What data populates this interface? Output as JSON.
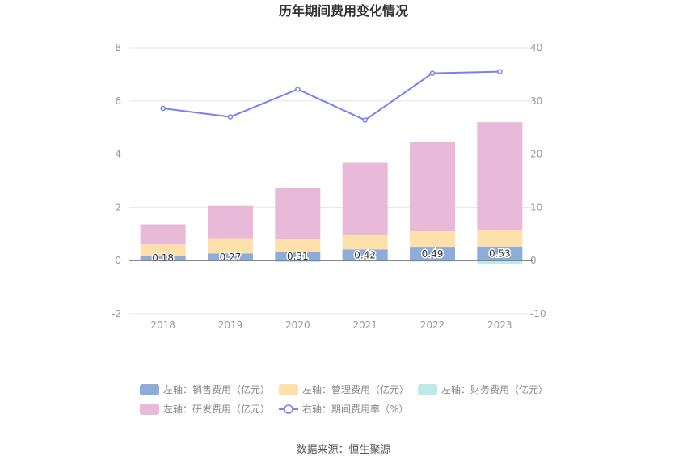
{
  "chart_data": {
    "type": "bar",
    "title": "历年期间费用变化情况",
    "categories": [
      "2018",
      "2019",
      "2020",
      "2021",
      "2022",
      "2023"
    ],
    "left_axis": {
      "ylim": [
        -2,
        8
      ],
      "ticks": [
        "-2",
        "0",
        "2",
        "4",
        "6",
        "8"
      ]
    },
    "right_axis": {
      "ylim": [
        -10,
        40
      ],
      "ticks": [
        "-10",
        "0",
        "10",
        "20",
        "30",
        "40"
      ]
    },
    "series": [
      {
        "name": "左轴：销售费用（亿元）",
        "axis": "left",
        "type": "bar",
        "color": "#8eacd9",
        "values": [
          0.18,
          0.27,
          0.31,
          0.42,
          0.49,
          0.53
        ],
        "labels": [
          "0.18",
          "0.27",
          "0.31",
          "0.42",
          "0.49",
          "0.53"
        ]
      },
      {
        "name": "左轴：管理费用（亿元）",
        "axis": "left",
        "type": "bar",
        "color": "#fde0aa",
        "values": [
          0.43,
          0.57,
          0.48,
          0.56,
          0.61,
          0.62
        ]
      },
      {
        "name": "左轴：财务费用（亿元）",
        "axis": "left",
        "type": "bar",
        "color": "#bfe8e8",
        "values": [
          -0.01,
          -0.02,
          -0.05,
          -0.03,
          -0.04,
          -0.12
        ]
      },
      {
        "name": "左轴：研发费用（亿元）",
        "axis": "left",
        "type": "bar",
        "color": "#e8b9d9",
        "values": [
          0.75,
          1.21,
          1.93,
          2.72,
          3.37,
          4.05
        ]
      },
      {
        "name": "右轴：期间费用率（%）",
        "axis": "right",
        "type": "line",
        "color": "#7b7ff0",
        "values": [
          28.6,
          27.0,
          32.2,
          26.4,
          35.2,
          35.5
        ]
      }
    ],
    "legend_position": "bottom",
    "grid": true
  },
  "footer": {
    "source": "数据来源：恒生聚源"
  }
}
